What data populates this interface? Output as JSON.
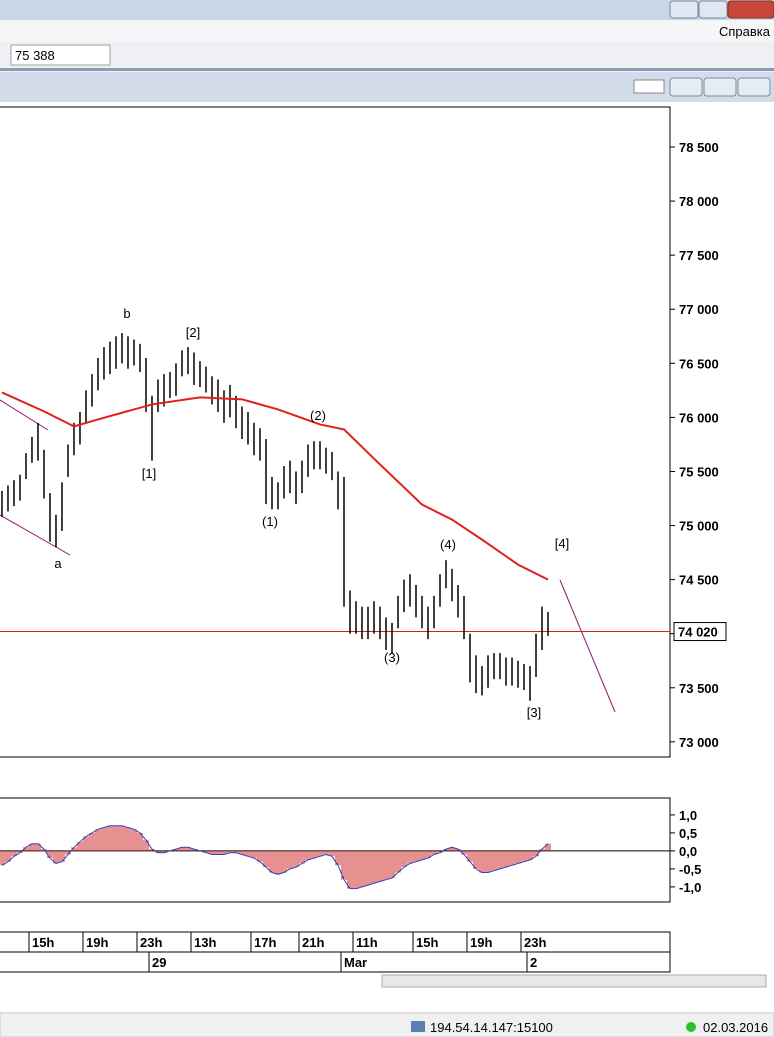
{
  "ui": {
    "menu": "Справка",
    "input": "75 388",
    "status_server": "194.54.14.147:15100",
    "status_date": "02.03.2016"
  },
  "chart_data": [
    {
      "type": "ohlc",
      "xlim": [
        -0.33,
        111.33
      ],
      "ylim": [
        72860,
        78870
      ],
      "yticks": [
        {
          "value": 73000,
          "label": "73 000"
        },
        {
          "value": 73500,
          "label": "73 500"
        },
        {
          "value": 74000,
          "label": "74 000"
        },
        {
          "value": 74500,
          "label": "74 500"
        },
        {
          "value": 75000,
          "label": "75 000"
        },
        {
          "value": 75500,
          "label": "75 500"
        },
        {
          "value": 76000,
          "label": "76 000"
        },
        {
          "value": 76500,
          "label": "76 500"
        },
        {
          "value": 77000,
          "label": "77 000"
        },
        {
          "value": 77500,
          "label": "77 500"
        },
        {
          "value": 78000,
          "label": "78 000"
        },
        {
          "value": 78500,
          "label": "78 500"
        }
      ],
      "current_price": {
        "value": 74020,
        "label": "74 020"
      },
      "color": "#000000",
      "x": [
        0,
        1,
        2,
        3,
        4,
        5,
        6,
        7,
        8,
        9,
        10,
        11,
        12,
        13,
        14,
        15,
        16,
        17,
        18,
        19,
        20,
        21,
        22,
        23,
        24,
        25,
        26,
        27,
        28,
        29,
        30,
        31,
        32,
        33,
        34,
        35,
        36,
        37,
        38,
        39,
        40,
        41,
        42,
        43,
        44,
        45,
        46,
        47,
        48,
        49,
        50,
        51,
        52,
        53,
        54,
        55,
        56,
        57,
        58,
        59,
        60,
        61,
        62,
        63,
        64,
        65,
        66,
        67,
        68,
        69,
        70,
        71,
        72,
        73,
        74,
        75,
        76,
        77,
        78,
        79,
        80,
        81,
        82,
        83,
        84,
        85,
        86,
        87,
        88,
        89,
        90,
        91
      ],
      "high": [
        75320,
        75370,
        75420,
        75470,
        75670,
        75820,
        75950,
        75700,
        75300,
        75100,
        75400,
        75750,
        75950,
        76050,
        76250,
        76400,
        76550,
        76650,
        76700,
        76750,
        76780,
        76750,
        76720,
        76680,
        76550,
        76200,
        76350,
        76400,
        76420,
        76500,
        76620,
        76650,
        76600,
        76520,
        76470,
        76380,
        76350,
        76250,
        76300,
        76200,
        76100,
        76050,
        75950,
        75900,
        75800,
        75450,
        75400,
        75550,
        75600,
        75500,
        75600,
        75750,
        75780,
        75780,
        75720,
        75680,
        75500,
        75450,
        74400,
        74300,
        74250,
        74250,
        74300,
        74250,
        74150,
        74100,
        74350,
        74500,
        74550,
        74450,
        74350,
        74250,
        74350,
        74550,
        74680,
        74600,
        74450,
        74350,
        74000,
        73800,
        73700,
        73800,
        73820,
        73820,
        73780,
        73780,
        73750,
        73720,
        73700,
        74000,
        74250,
        74200
      ],
      "low": [
        75080,
        75130,
        75180,
        75230,
        75430,
        75580,
        75600,
        75250,
        74850,
        74800,
        74950,
        75450,
        75650,
        75750,
        75950,
        76100,
        76250,
        76350,
        76400,
        76450,
        76500,
        76450,
        76480,
        76420,
        76050,
        75600,
        76050,
        76100,
        76180,
        76200,
        76380,
        76400,
        76300,
        76280,
        76230,
        76120,
        76050,
        75950,
        76000,
        75900,
        75800,
        75750,
        75650,
        75600,
        75200,
        75150,
        75150,
        75250,
        75300,
        75200,
        75300,
        75450,
        75520,
        75520,
        75480,
        75420,
        75150,
        74250,
        74000,
        74000,
        73950,
        73950,
        74000,
        73950,
        73850,
        73820,
        74050,
        74200,
        74250,
        74150,
        74050,
        73950,
        74050,
        74250,
        74420,
        74300,
        74150,
        73950,
        73550,
        73450,
        73430,
        73500,
        73580,
        73580,
        73520,
        73520,
        73500,
        73480,
        73380,
        73600,
        73850,
        73980
      ],
      "ma": {
        "color": "#e0201c",
        "x": [
          0,
          7,
          12,
          16,
          25,
          33,
          40,
          46,
          53,
          57,
          63,
          70,
          75,
          80,
          86,
          91
        ],
        "values": [
          76231,
          76056,
          75917,
          75981,
          76120,
          76185,
          76167,
          76074,
          75935,
          75889,
          75565,
          75194,
          75055,
          74870,
          74639,
          74500
        ]
      },
      "annotations": [
        "b",
        "[2]",
        "[1]",
        "(2)",
        "(1)",
        "a",
        "(4)",
        "[4]",
        "(3)",
        "[3]"
      ],
      "time_ticks": [
        {
          "value": 7,
          "label": "15h"
        },
        {
          "value": 16,
          "label": "19h"
        },
        {
          "value": 25,
          "label": "23h"
        },
        {
          "value": 34,
          "label": "13h"
        },
        {
          "value": 44,
          "label": "17h"
        },
        {
          "value": 52,
          "label": "21h"
        },
        {
          "value": 61,
          "label": "11h"
        },
        {
          "value": 71,
          "label": "15h"
        },
        {
          "value": 80,
          "label": "19h"
        },
        {
          "value": 89,
          "label": "23h"
        }
      ],
      "date_ticks": [
        {
          "value": 25,
          "label": "29"
        },
        {
          "value": 57,
          "label": "Mar"
        },
        {
          "value": 88,
          "label": "2"
        }
      ]
    },
    {
      "type": "bar",
      "color": "#cc2020",
      "line_color": "#3040c0",
      "ylim": [
        -1.42,
        1.47
      ],
      "yticks": [
        {
          "value": 1,
          "label": "1,0"
        },
        {
          "value": 0.5,
          "label": "0,5"
        },
        {
          "value": 0,
          "label": "0,0"
        },
        {
          "value": -0.5,
          "label": "-0,5"
        },
        {
          "value": -1,
          "label": "-1,0"
        }
      ],
      "values": [
        -0.4,
        -0.3,
        -0.15,
        -0.05,
        0.1,
        0.2,
        0.2,
        0.05,
        -0.2,
        -0.35,
        -0.3,
        -0.1,
        0.1,
        0.25,
        0.4,
        0.5,
        0.6,
        0.65,
        0.7,
        0.7,
        0.7,
        0.65,
        0.6,
        0.5,
        0.3,
        0.05,
        -0.05,
        -0.05,
        0,
        0.05,
        0.1,
        0.1,
        0.05,
        0,
        -0.05,
        -0.1,
        -0.1,
        -0.1,
        -0.05,
        -0.05,
        -0.1,
        -0.15,
        -0.2,
        -0.3,
        -0.45,
        -0.6,
        -0.65,
        -0.6,
        -0.5,
        -0.45,
        -0.35,
        -0.25,
        -0.2,
        -0.15,
        -0.1,
        -0.15,
        -0.4,
        -0.8,
        -1.05,
        -1.05,
        -1,
        -0.95,
        -0.9,
        -0.85,
        -0.8,
        -0.75,
        -0.6,
        -0.45,
        -0.35,
        -0.3,
        -0.25,
        -0.2,
        -0.1,
        -0.05,
        0.05,
        0.1,
        0.05,
        -0.1,
        -0.3,
        -0.5,
        -0.6,
        -0.6,
        -0.55,
        -0.5,
        -0.45,
        -0.4,
        -0.35,
        -0.3,
        -0.25,
        -0.15,
        0.05,
        0.2
      ]
    }
  ]
}
